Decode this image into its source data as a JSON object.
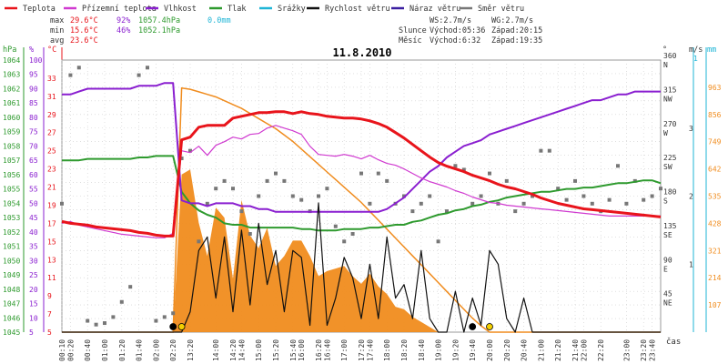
{
  "legend": [
    {
      "label": "Teplota",
      "color": "#e8141b"
    },
    {
      "label": "Přízemní teplota",
      "color": "#d03ad0"
    },
    {
      "label": "Vlhkost",
      "color": "#8a1fd0"
    },
    {
      "label": "Tlak",
      "color": "#2e9a2e"
    },
    {
      "label": "Srážky",
      "color": "#1fb5d6"
    },
    {
      "label": "Rychlost větru",
      "color": "#111111"
    },
    {
      "label": "Náraz větru",
      "color": "#3b1fa0"
    },
    {
      "label": "Směr větru",
      "color": "#777777"
    }
  ],
  "stats": {
    "max": {
      "label": "max",
      "temp": "29.6°C",
      "hum": "92%",
      "press": "1057.4hPa",
      "rain": "0.0mm"
    },
    "min": {
      "label": "min",
      "temp": "15.6°C",
      "hum": "46%",
      "press": "1052.1hPa"
    },
    "avg": {
      "label": "avg",
      "temp": "23.6°C"
    }
  },
  "wind": {
    "ws": "WS:2.7m/s",
    "wg": "WG:2.7m/s"
  },
  "sun": {
    "label": "Slunce",
    "rise": "Východ:05:36",
    "set": "Západ:20:15"
  },
  "moon": {
    "label": "Měsíc",
    "rise": "Východ:6:32",
    "set": "Západ:19:35"
  },
  "chart_data": {
    "type": "line",
    "title": "11.8.2010",
    "xlabel": "čas",
    "x": [
      "00:10",
      "00:20",
      "00:30",
      "00:40",
      "00:50",
      "01:00",
      "01:10",
      "01:20",
      "01:30",
      "01:40",
      "01:50",
      "02:00",
      "02:10",
      "02:20",
      "13:10",
      "13:20",
      "13:30",
      "13:40",
      "14:00",
      "14:10",
      "14:20",
      "14:40",
      "14:50",
      "15:00",
      "15:10",
      "15:20",
      "15:30",
      "15:40",
      "16:00",
      "16:10",
      "16:20",
      "16:40",
      "16:50",
      "17:00",
      "17:10",
      "17:20",
      "17:40",
      "17:50",
      "18:00",
      "18:10",
      "18:20",
      "18:30",
      "18:40",
      "18:50",
      "19:00",
      "19:10",
      "19:20",
      "19:30",
      "19:40",
      "19:50",
      "20:00",
      "20:10",
      "20:20",
      "20:30",
      "20:40",
      "20:50",
      "21:00",
      "21:10",
      "21:20",
      "21:30",
      "21:40",
      "22:00",
      "22:10",
      "22:20",
      "22:30",
      "22:50",
      "23:00",
      "23:10",
      "23:20",
      "23:40",
      "23:50"
    ],
    "xticks": [
      "00:10",
      "00:20",
      "00:40",
      "01:00",
      "01:20",
      "01:40",
      "02:00",
      "02:20",
      "13:20",
      "14:00",
      "14:20",
      "14:40",
      "15:00",
      "15:20",
      "15:40",
      "16:00",
      "16:20",
      "16:40",
      "17:00",
      "17:20",
      "17:40",
      "18:00",
      "18:20",
      "18:40",
      "19:00",
      "19:20",
      "19:40",
      "20:00",
      "20:20",
      "20:40",
      "21:00",
      "21:20",
      "21:40",
      "22:00",
      "22:20",
      "22:40",
      "23:00",
      "23:20",
      "23:40"
    ],
    "axes": {
      "pressure": {
        "label": "hPa",
        "ticks": [
          1064,
          1063,
          1062,
          1061,
          1060,
          1059,
          1058,
          1057,
          1056,
          1055,
          1054,
          1053,
          1052,
          1051,
          1050,
          1049,
          1048,
          1047,
          1046,
          1045
        ],
        "range": [
          1045,
          1064
        ],
        "color": "#2e9a2e"
      },
      "humidity": {
        "label": "%",
        "ticks": [
          100,
          95,
          90,
          85,
          80,
          75,
          70,
          65,
          60,
          55,
          50,
          45,
          40,
          35,
          30,
          25,
          20,
          15,
          10,
          5
        ],
        "range": [
          5,
          100
        ],
        "color": "#8a1fd0"
      },
      "temperature": {
        "label": "°C",
        "ticks": [
          33,
          31,
          29,
          27,
          25,
          23,
          21,
          19,
          17,
          15,
          13,
          11,
          9,
          7,
          5
        ],
        "range": [
          5,
          35
        ],
        "color": "#e8141b"
      },
      "direction": {
        "label": "°",
        "ticks": [
          {
            "v": 360,
            "t": "N"
          },
          {
            "v": 315,
            "t": "NW"
          },
          {
            "v": 270,
            "t": "W"
          },
          {
            "v": 225,
            "t": "SW"
          },
          {
            "v": 180,
            "t": "S"
          },
          {
            "v": 135,
            "t": "SE"
          },
          {
            "v": 90,
            "t": "E"
          },
          {
            "v": 45,
            "t": "NE"
          }
        ],
        "range": [
          0,
          360
        ]
      },
      "wind": {
        "label": "m/s",
        "ticks": [
          3,
          2,
          1
        ],
        "range": [
          0,
          4
        ]
      },
      "rain": {
        "label": "mm",
        "ticks": [
          1
        ],
        "range": [
          0,
          1.2
        ]
      },
      "radiation": {
        "ticks": [
          963,
          856,
          749,
          642,
          535,
          428,
          321,
          214,
          107
        ],
        "range": [
          0,
          1070
        ],
        "color": "#f08c1e"
      }
    },
    "series": [
      {
        "name": "Teplota",
        "color": "#e8141b",
        "values": [
          17.2,
          17.0,
          16.9,
          16.8,
          16.6,
          16.5,
          16.4,
          16.3,
          16.2,
          16.0,
          15.9,
          15.7,
          15.6,
          15.6,
          26.2,
          26.5,
          27.6,
          27.8,
          27.8,
          27.8,
          28.6,
          28.8,
          29.0,
          29.2,
          29.2,
          29.3,
          29.3,
          29.1,
          29.3,
          29.1,
          29.0,
          28.8,
          28.7,
          28.6,
          28.6,
          28.5,
          28.3,
          28.0,
          27.6,
          27.0,
          26.4,
          25.7,
          25.0,
          24.3,
          23.7,
          23.3,
          23.0,
          22.7,
          22.3,
          22.0,
          21.7,
          21.3,
          21.0,
          20.8,
          20.5,
          20.2,
          19.8,
          19.5,
          19.2,
          19.0,
          18.8,
          18.6,
          18.5,
          18.4,
          18.3,
          18.2,
          18.1,
          18.0,
          17.9,
          17.8,
          17.7
        ]
      },
      {
        "name": "Přízemní teplota",
        "color": "#d03ad0",
        "values": [
          17.0,
          17.2,
          16.8,
          16.6,
          16.4,
          16.2,
          16.0,
          15.8,
          15.7,
          15.6,
          15.5,
          15.4,
          15.4,
          15.9,
          25.0,
          24.8,
          25.5,
          24.5,
          25.6,
          26.0,
          26.5,
          26.3,
          26.8,
          26.9,
          27.5,
          27.8,
          27.5,
          27.2,
          26.8,
          25.5,
          24.6,
          24.5,
          24.4,
          24.6,
          24.4,
          24.1,
          24.5,
          24.0,
          23.6,
          23.4,
          23.0,
          22.5,
          22.0,
          21.6,
          21.3,
          21.0,
          20.6,
          20.3,
          19.9,
          19.6,
          19.3,
          19.2,
          19.0,
          18.9,
          18.8,
          18.7,
          18.6,
          18.5,
          18.4,
          18.3,
          18.2,
          18.1,
          18.0,
          17.9,
          17.8,
          17.8,
          17.8,
          17.8,
          17.8,
          17.8,
          17.8
        ]
      },
      {
        "name": "Vlhkost",
        "color": "#8a1fd0",
        "values": [
          88,
          88,
          89,
          90,
          90,
          90,
          90,
          90,
          90,
          91,
          91,
          91,
          92,
          92,
          51,
          50,
          50,
          49,
          50,
          50,
          50,
          49,
          49,
          48,
          48,
          47,
          47,
          47,
          47,
          47,
          47,
          47,
          47,
          47,
          47,
          47,
          47,
          47,
          48,
          50,
          52,
          55,
          58,
          61,
          63,
          66,
          68,
          70,
          71,
          72,
          74,
          75,
          76,
          77,
          78,
          79,
          80,
          81,
          82,
          83,
          84,
          85,
          86,
          86,
          87,
          88,
          88,
          89,
          89,
          89,
          89
        ]
      },
      {
        "name": "Tlak",
        "color": "#2e9a2e",
        "values": [
          1057.0,
          1057.0,
          1057.0,
          1057.1,
          1057.1,
          1057.1,
          1057.1,
          1057.1,
          1057.1,
          1057.2,
          1057.2,
          1057.3,
          1057.3,
          1057.3,
          1054.8,
          1054.0,
          1053.5,
          1053.2,
          1053.0,
          1052.6,
          1052.5,
          1052.5,
          1052.3,
          1052.3,
          1052.3,
          1052.3,
          1052.3,
          1052.3,
          1052.2,
          1052.2,
          1052.1,
          1052.1,
          1052.1,
          1052.2,
          1052.2,
          1052.2,
          1052.3,
          1052.3,
          1052.4,
          1052.5,
          1052.5,
          1052.7,
          1052.8,
          1053.0,
          1053.2,
          1053.3,
          1053.5,
          1053.6,
          1053.8,
          1053.9,
          1054.1,
          1054.2,
          1054.4,
          1054.5,
          1054.6,
          1054.7,
          1054.8,
          1054.8,
          1054.9,
          1055.0,
          1055.0,
          1055.1,
          1055.1,
          1055.2,
          1055.3,
          1055.4,
          1055.4,
          1055.5,
          1055.6,
          1055.6,
          1055.4
        ]
      },
      {
        "name": "Rychlost větru",
        "color": "#111111",
        "values": [
          0,
          0,
          0,
          0,
          0,
          0,
          0,
          0,
          0,
          0,
          0,
          0,
          0,
          0,
          0,
          0.3,
          1.2,
          1.4,
          0.5,
          1.4,
          0.3,
          1.5,
          0.4,
          1.6,
          0.7,
          1.2,
          0.3,
          1.2,
          1.1,
          0.1,
          1.9,
          0.1,
          0.5,
          1.1,
          0.8,
          0.2,
          1.0,
          0.2,
          1.4,
          0.5,
          0.7,
          0.2,
          1.2,
          0.2,
          0.0,
          0.0,
          0.6,
          0.0,
          0.5,
          0.1,
          1.2,
          1.0,
          0.2,
          0.0,
          0.5,
          0.0,
          0.0,
          0.0,
          0.0,
          0.0,
          0.0,
          0.0,
          0.0,
          0.0,
          0.0,
          0.0,
          0.0,
          0.0,
          0.0,
          0.0,
          0.0
        ]
      },
      {
        "name": "Směr větru",
        "color": "#777777",
        "values": [
          170,
          340,
          350,
          15,
          10,
          12,
          20,
          40,
          60,
          340,
          350,
          15,
          20,
          25,
          230,
          240,
          120,
          170,
          190,
          200,
          190,
          160,
          130,
          180,
          200,
          210,
          200,
          180,
          175,
          160,
          180,
          190,
          140,
          120,
          130,
          210,
          170,
          210,
          200,
          170,
          180,
          160,
          170,
          180,
          120,
          160,
          220,
          215,
          170,
          180,
          210,
          170,
          200,
          160,
          170,
          180,
          240,
          240,
          190,
          175,
          200,
          180,
          170,
          160,
          175,
          220,
          170,
          200,
          175,
          180,
          190
        ]
      },
      {
        "name": "Radiation",
        "color": "#f08c1e",
        "values": [
          0,
          0,
          0,
          0,
          0,
          0,
          0,
          0,
          0,
          0,
          0,
          0,
          0,
          0,
          620,
          640,
          430,
          300,
          490,
          450,
          210,
          520,
          380,
          330,
          410,
          260,
          300,
          360,
          360,
          300,
          220,
          240,
          250,
          260,
          220,
          190,
          230,
          180,
          150,
          100,
          90,
          60,
          40,
          20,
          0,
          0,
          0,
          0,
          0,
          0,
          0,
          0,
          0,
          0,
          0,
          0,
          0,
          0,
          0,
          0,
          0,
          0,
          0,
          0,
          0,
          0,
          0,
          0,
          0,
          0,
          0
        ]
      },
      {
        "name": "Sun",
        "color": "#f08c1e",
        "values": [
          0,
          0,
          0,
          0,
          0,
          0,
          0,
          0,
          0,
          0,
          0,
          0,
          0,
          0,
          960,
          955,
          945,
          935,
          925,
          910,
          895,
          880,
          860,
          840,
          820,
          800,
          775,
          750,
          720,
          690,
          660,
          630,
          600,
          570,
          540,
          510,
          475,
          440,
          405,
          370,
          335,
          300,
          265,
          230,
          195,
          160,
          125,
          90,
          55,
          25,
          0,
          0,
          0,
          0,
          0,
          0,
          0,
          0,
          0,
          0,
          0,
          0,
          0,
          0,
          0,
          0,
          0,
          0,
          0,
          0,
          0
        ]
      }
    ],
    "markers": [
      {
        "x": "02:20",
        "type": "moon-rise",
        "color": "#000000"
      },
      {
        "x": "13:10",
        "type": "sun-rise",
        "color": "#f4d000"
      },
      {
        "x": "19:40",
        "type": "moon-set",
        "color": "#000000"
      },
      {
        "x": "20:00",
        "type": "sun-set",
        "color": "#f4d000"
      }
    ]
  }
}
